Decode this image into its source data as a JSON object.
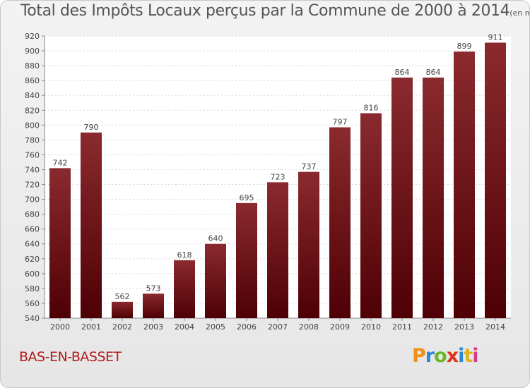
{
  "title": "Total des Impôts Locaux perçus par la Commune de 2000 à 2014",
  "title_unit": "(en milliers d'€)",
  "commune": "BAS-EN-BASSET",
  "brand": {
    "letters": [
      "P",
      "r",
      "o",
      "x",
      "i",
      "t",
      "i"
    ]
  },
  "colors": {
    "bar": "#7a1a1e",
    "bar_dark": "#520006",
    "title": "#555555",
    "commune": "#b11a1a"
  },
  "chart_data": {
    "type": "bar",
    "title": "Total des Impôts Locaux perçus par la Commune de 2000 à 2014",
    "xlabel": "",
    "ylabel": "",
    "categories": [
      "2000",
      "2001",
      "2002",
      "2003",
      "2004",
      "2005",
      "2006",
      "2007",
      "2008",
      "2009",
      "2010",
      "2011",
      "2012",
      "2013",
      "2014"
    ],
    "values": [
      742,
      790,
      562,
      573,
      618,
      640,
      695,
      723,
      737,
      797,
      816,
      864,
      864,
      899,
      911
    ],
    "ylim": [
      540,
      920
    ],
    "yticks": [
      540,
      560,
      580,
      600,
      620,
      640,
      660,
      680,
      700,
      720,
      740,
      760,
      780,
      800,
      820,
      840,
      860,
      880,
      900,
      920
    ],
    "grid": true
  }
}
